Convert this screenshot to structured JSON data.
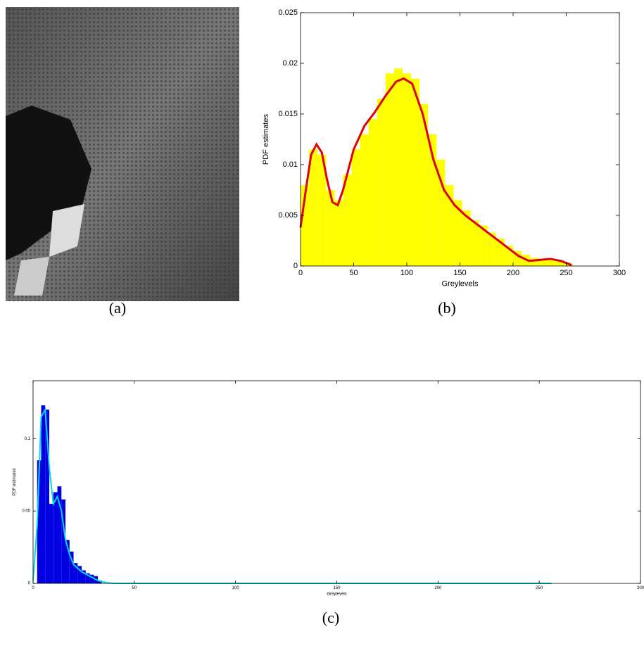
{
  "figure": {
    "captions": [
      "(a)",
      "(b)",
      "(c)"
    ]
  },
  "chart_data": [
    {
      "type": "histogram",
      "xlabel": "Greylevels",
      "ylabel": "PDF estimates",
      "color": "#ffff00",
      "bins": [
        0,
        8,
        16,
        24,
        32,
        40,
        48,
        56,
        64,
        72,
        80,
        88,
        96,
        104,
        112,
        120,
        128,
        136,
        144,
        152,
        160,
        168,
        176,
        184,
        192,
        200,
        208,
        216,
        224,
        232,
        240,
        248,
        256
      ],
      "values": [
        0.008,
        0.0115,
        0.011,
        0.0075,
        0.0065,
        0.009,
        0.0115,
        0.013,
        0.0145,
        0.0165,
        0.019,
        0.0195,
        0.019,
        0.0185,
        0.016,
        0.013,
        0.0105,
        0.008,
        0.0065,
        0.0055,
        0.0045,
        0.004,
        0.0033,
        0.0027,
        0.002,
        0.0015,
        0.0011,
        0.0008,
        0.0007,
        0.0007,
        0.0005,
        0.0002
      ],
      "line": {
        "color": "#e00000",
        "x": [
          0,
          5,
          10,
          15,
          20,
          25,
          30,
          35,
          40,
          50,
          60,
          70,
          80,
          90,
          97,
          105,
          115,
          125,
          135,
          145,
          155,
          165,
          175,
          185,
          195,
          205,
          215,
          225,
          235,
          245,
          255
        ],
        "y": [
          0.0038,
          0.0075,
          0.011,
          0.012,
          0.0112,
          0.0085,
          0.0063,
          0.006,
          0.0075,
          0.0115,
          0.0138,
          0.0152,
          0.0168,
          0.0182,
          0.0185,
          0.018,
          0.015,
          0.0105,
          0.0075,
          0.006,
          0.005,
          0.0042,
          0.0034,
          0.0026,
          0.0018,
          0.001,
          0.0005,
          0.0006,
          0.0007,
          0.0005,
          0.0001
        ]
      },
      "xlim": [
        0,
        300
      ],
      "ylim": [
        0,
        0.025
      ],
      "xticks": [
        0,
        50,
        100,
        150,
        200,
        250,
        300
      ],
      "yticks": [
        0,
        0.005,
        0.01,
        0.015,
        0.02,
        0.025
      ]
    },
    {
      "type": "histogram",
      "xlabel": "Greylevels",
      "ylabel": "PDF estimates",
      "color": "#0000e0",
      "bins": [
        0,
        2,
        4,
        6,
        8,
        10,
        12,
        14,
        16,
        18,
        20,
        22,
        24,
        26,
        28,
        30,
        32,
        34
      ],
      "values": [
        0.0,
        0.085,
        0.123,
        0.12,
        0.055,
        0.063,
        0.067,
        0.058,
        0.03,
        0.022,
        0.014,
        0.012,
        0.009,
        0.007,
        0.006,
        0.005,
        0.002
      ],
      "line": {
        "color": "#00d8f0",
        "x": [
          0,
          2,
          4,
          6,
          8,
          10,
          12,
          14,
          16,
          18,
          20,
          24,
          28,
          32,
          36,
          40,
          60,
          100,
          200,
          256
        ],
        "y": [
          0.002,
          0.04,
          0.115,
          0.12,
          0.08,
          0.055,
          0.06,
          0.05,
          0.03,
          0.02,
          0.013,
          0.008,
          0.005,
          0.002,
          0.0005,
          0,
          0,
          0,
          0,
          0
        ]
      },
      "xlim": [
        0,
        300
      ],
      "ylim": [
        0,
        0.14
      ],
      "xticks": [
        0,
        50,
        100,
        150,
        200,
        250,
        300
      ],
      "yticks": [
        0,
        0.05,
        0.1
      ]
    }
  ]
}
